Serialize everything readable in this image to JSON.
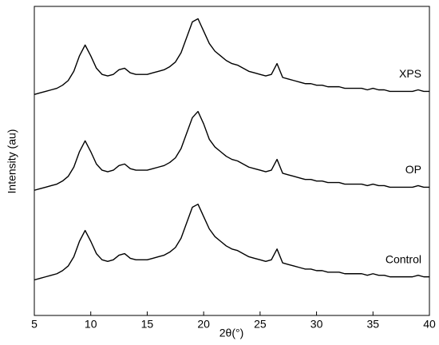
{
  "chart_data": {
    "type": "line",
    "x_label": "2θ(°)",
    "y_label": "Intensity (au)",
    "x": [
      5,
      5.5,
      6,
      6.5,
      7,
      7.5,
      8,
      8.5,
      9,
      9.5,
      10,
      10.5,
      11,
      11.5,
      12,
      12.5,
      13,
      13.5,
      14,
      14.5,
      15,
      15.5,
      16,
      16.5,
      17,
      17.5,
      18,
      18.5,
      19,
      19.5,
      20,
      20.5,
      21,
      21.5,
      22,
      22.5,
      23,
      23.5,
      24,
      24.5,
      25,
      25.5,
      26,
      26.5,
      27,
      27.5,
      28,
      28.5,
      29,
      29.5,
      30,
      30.5,
      31,
      31.5,
      32,
      32.5,
      33,
      33.5,
      34,
      34.5,
      35,
      35.5,
      36,
      36.5,
      37,
      37.5,
      38,
      38.5,
      39,
      39.5,
      40
    ],
    "xlim": [
      5,
      40
    ],
    "xticks": [
      5,
      10,
      15,
      20,
      25,
      30,
      35,
      40
    ],
    "ylim": [
      0,
      100
    ],
    "series": [
      {
        "name": "XPS",
        "color": "#000000",
        "values": [
          71.5,
          72,
          72.5,
          73,
          73.5,
          74.5,
          76,
          79,
          84,
          87.5,
          84,
          80,
          78,
          77.5,
          78,
          79.5,
          80,
          78.5,
          78,
          78,
          78,
          78.5,
          79,
          79.5,
          80.5,
          82,
          85,
          90,
          95,
          96,
          92,
          88,
          85.5,
          84,
          82.5,
          81.5,
          81,
          80,
          79,
          78.5,
          78,
          77.5,
          78,
          81.5,
          77,
          76.5,
          76,
          75.5,
          75,
          75,
          74.5,
          74.5,
          74,
          74,
          74,
          73.5,
          73.5,
          73.5,
          73.5,
          73,
          73.5,
          73,
          73,
          72.5,
          72.5,
          72.5,
          72.5,
          72.5,
          73,
          72.5,
          72.5
        ]
      },
      {
        "name": "OP",
        "color": "#000000",
        "values": [
          40.5,
          41,
          41.5,
          42,
          42.5,
          43.5,
          45,
          48,
          53,
          56.5,
          53,
          49,
          47,
          46.5,
          47,
          48.5,
          49,
          47.5,
          47,
          47,
          47,
          47.5,
          48,
          48.5,
          49.5,
          51,
          54,
          59,
          64,
          66,
          62,
          57,
          54.5,
          53,
          51.5,
          50.5,
          50,
          49,
          48,
          47.5,
          47,
          46.5,
          47,
          50.5,
          46,
          45.5,
          45,
          44.5,
          44,
          44,
          43.5,
          43.5,
          43,
          43,
          43,
          42.5,
          42.5,
          42.5,
          42.5,
          42,
          42.5,
          42,
          42,
          41.5,
          41.5,
          41.5,
          41.5,
          41.5,
          42,
          41.5,
          41.5
        ]
      },
      {
        "name": "Control",
        "color": "#000000",
        "values": [
          11.5,
          12,
          12.5,
          13,
          13.5,
          14.5,
          16,
          19,
          24,
          27.5,
          24,
          20,
          18,
          17.5,
          18,
          19.5,
          20,
          18.5,
          18,
          18,
          18,
          18.5,
          19,
          19.5,
          20.5,
          22,
          25,
          30,
          35,
          36,
          32,
          28,
          25.5,
          24,
          22.5,
          21.5,
          21,
          20,
          19,
          18.5,
          18,
          17.5,
          18,
          21.5,
          17,
          16.5,
          16,
          15.5,
          15,
          15,
          14.5,
          14.5,
          14,
          14,
          14,
          13.5,
          13.5,
          13.5,
          13.5,
          13,
          13.5,
          13,
          13,
          12.5,
          12.5,
          12.5,
          12.5,
          12.5,
          13,
          12.5,
          12.5
        ]
      }
    ]
  }
}
